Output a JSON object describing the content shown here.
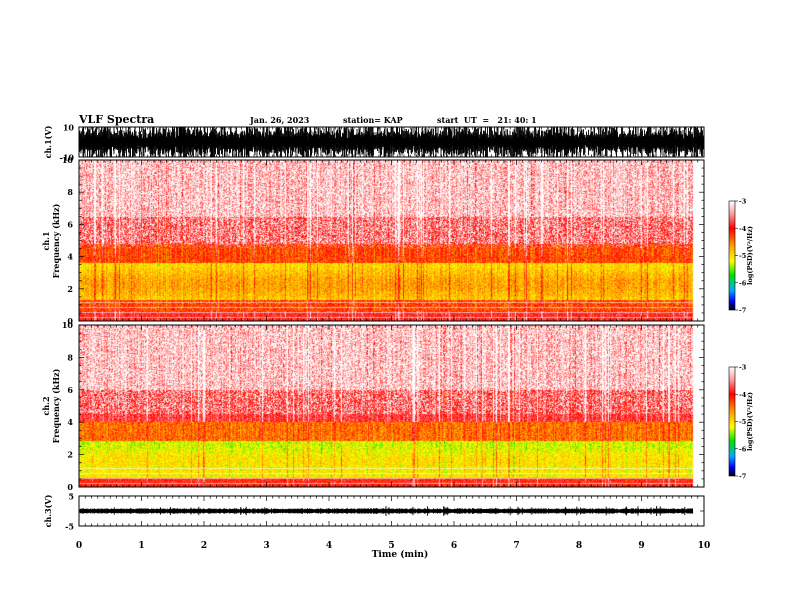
{
  "header": {
    "title": "VLF Spectra",
    "date": "Jan. 26, 2023",
    "station": "station= KAP",
    "start_ut": "start  UT  =   21: 40: 1"
  },
  "chart_data": [
    {
      "type": "line",
      "name": "ch1-waveform",
      "ylabel": "ch.1(V)",
      "ylim": [
        -10,
        10
      ],
      "yticklabels": [
        "10",
        "-10"
      ],
      "xlim": [
        0,
        10
      ]
    },
    {
      "type": "heatmap",
      "name": "ch1-spectrogram",
      "ylabel_line1": "ch.1",
      "ylabel_line2": "Frequency (kHz)",
      "xlim": [
        0,
        10
      ],
      "data_xmax": 9.82,
      "ylim": [
        0,
        10
      ],
      "yticks": [
        0,
        2,
        4,
        6,
        8,
        10
      ],
      "colorbar": {
        "label": "log(PSD)(V²/Hz)",
        "range": [
          -7,
          -3
        ],
        "ticks": [
          -3,
          -4,
          -5,
          -6,
          -7
        ]
      }
    },
    {
      "type": "heatmap",
      "name": "ch2-spectrogram",
      "ylabel_line1": "ch.2",
      "ylabel_line2": "Frequency (kHz)",
      "xlim": [
        0,
        10
      ],
      "data_xmax": 9.82,
      "ylim": [
        0,
        10
      ],
      "yticks": [
        0,
        2,
        4,
        6,
        8,
        10
      ],
      "colorbar": {
        "label": "log(PSD)(V²/Hz)",
        "range": [
          -7,
          -3
        ],
        "ticks": [
          -3,
          -4,
          -5,
          -6,
          -7
        ]
      }
    },
    {
      "type": "line",
      "name": "ch3-waveform",
      "ylabel": "ch.3(V)",
      "ylim": [
        -5,
        5
      ],
      "yticklabels": [
        "5",
        "-5"
      ],
      "xlim": [
        0,
        10
      ]
    }
  ],
  "xaxis": {
    "label": "Time (min)",
    "ticks": [
      0,
      1,
      2,
      3,
      4,
      5,
      6,
      7,
      8,
      9,
      10
    ]
  },
  "colors": {
    "background": "#ffffff",
    "waveform": "#000000",
    "spectrogram_high": "#ff0000",
    "spectrogram_mid": "#ffff00",
    "spectrogram_low": "#00ff00"
  }
}
